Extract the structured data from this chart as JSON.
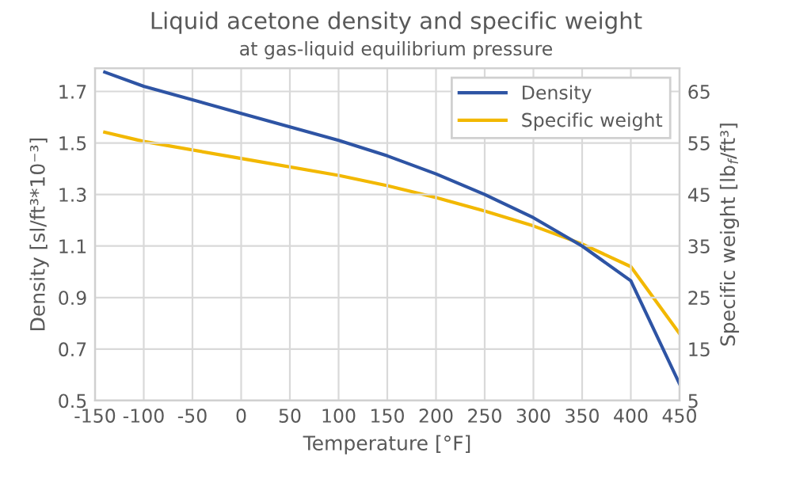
{
  "chart_data": {
    "type": "line",
    "title": "Liquid acetone density and specific weight",
    "subtitle": "at gas-liquid equilibrium pressure",
    "xlabel": "Temperature [°F]",
    "ylabel": "Density [sl/ft³*10⁻³]",
    "y2label": "Specific weight [lb$_{f}$/ft³]",
    "x": [
      -140,
      -100,
      0,
      100,
      150,
      200,
      250,
      300,
      350,
      400,
      450
    ],
    "series": [
      {
        "name": "Density",
        "color": "#2e54a4",
        "values": [
          1.775,
          1.72,
          1.615,
          1.51,
          1.45,
          1.38,
          1.3,
          1.21,
          1.1,
          0.965,
          0.565
        ]
      },
      {
        "name": "Specific weight",
        "color": "#f2b800",
        "axis": "y2",
        "values": [
          57.1,
          55.3,
          52.0,
          48.7,
          46.7,
          44.4,
          41.8,
          38.9,
          35.4,
          31.0,
          18.0
        ]
      }
    ],
    "xlim": [
      -150,
      450
    ],
    "xticks": [
      -150,
      -100,
      -50,
      0,
      50,
      100,
      150,
      200,
      250,
      300,
      350,
      400,
      450
    ],
    "ylim": [
      0.5,
      1.79
    ],
    "yticks": [
      0.5,
      0.7,
      0.9,
      1.1,
      1.3,
      1.5,
      1.7
    ],
    "y2lim": [
      5,
      69.5
    ],
    "y2ticks": [
      5,
      15,
      25,
      35,
      45,
      55,
      65
    ],
    "grid": true,
    "legend": "top right",
    "marker": "none",
    "line_style": "solid"
  }
}
